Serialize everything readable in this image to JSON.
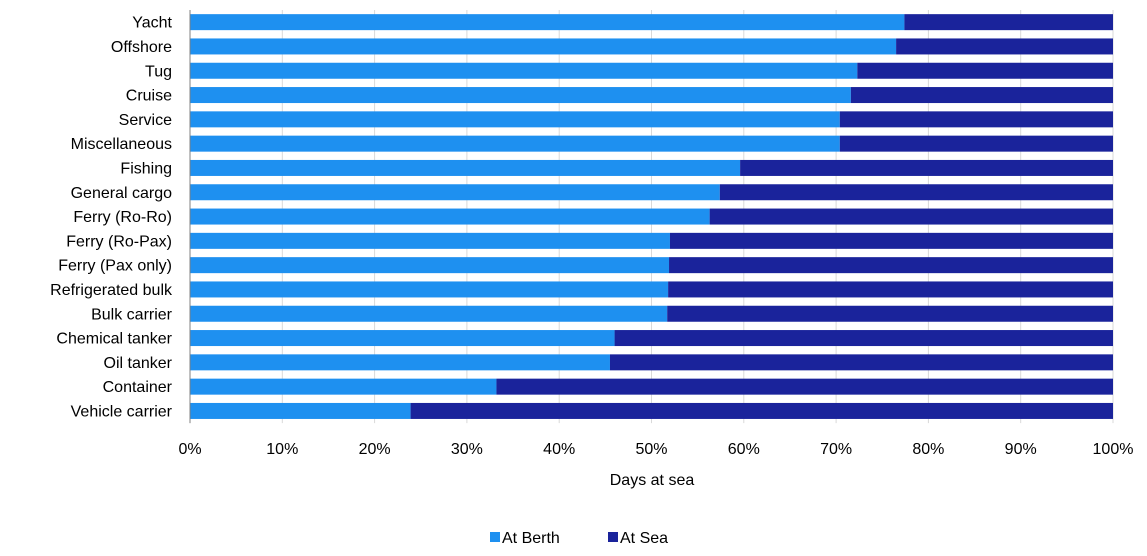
{
  "chart_data": {
    "type": "bar",
    "orientation": "horizontal",
    "stacked": "percent",
    "categories": [
      "Yacht",
      "Offshore",
      "Tug",
      "Cruise",
      "Service",
      "Miscellaneous",
      "Fishing",
      "General cargo",
      "Ferry (Ro-Ro)",
      "Ferry (Ro-Pax)",
      "Ferry (Pax only)",
      "Refrigerated bulk",
      "Bulk carrier",
      "Chemical tanker",
      "Oil tanker",
      "Container",
      "Vehicle carrier"
    ],
    "series": [
      {
        "name": "At Berth",
        "color": "#1e90f0",
        "values": [
          77.4,
          76.5,
          72.3,
          71.6,
          70.4,
          70.4,
          59.6,
          57.4,
          56.3,
          52.0,
          51.9,
          51.8,
          51.7,
          46.0,
          45.5,
          33.2,
          23.9
        ]
      },
      {
        "name": "At Sea",
        "color": "#1a239b",
        "values": [
          22.6,
          23.5,
          27.7,
          28.4,
          29.6,
          29.6,
          40.4,
          42.6,
          43.7,
          48.0,
          48.1,
          48.2,
          48.3,
          54.0,
          54.5,
          66.8,
          76.1
        ]
      }
    ],
    "x_ticks": [
      "0%",
      "10%",
      "20%",
      "30%",
      "40%",
      "50%",
      "60%",
      "70%",
      "80%",
      "90%",
      "100%"
    ],
    "xlim": [
      0,
      100
    ],
    "xlabel": "Days at sea",
    "ylabel": "",
    "title": "",
    "grid": "vertical",
    "legend": "bottom-center"
  }
}
